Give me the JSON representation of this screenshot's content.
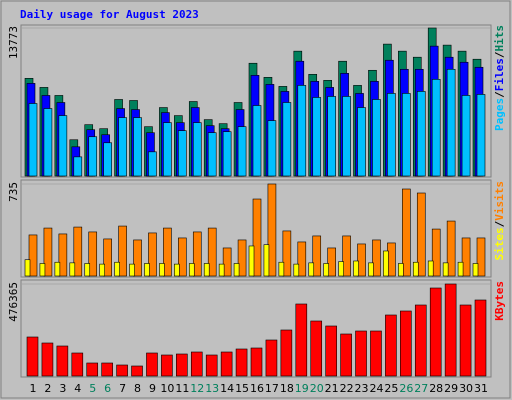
{
  "chart_data": [
    {
      "type": "bar",
      "title": "Daily usage for August 2023",
      "ylim": [
        0,
        13773
      ],
      "yticks": [
        13773
      ],
      "legend_separator": "/",
      "series": [
        {
          "name": "Hits",
          "color": "#00805c",
          "values": [
            9090,
            8245,
            7495,
            3373,
            4778,
            4404,
            7121,
            7027,
            4591,
            6371,
            5622,
            6933,
            5247,
            4872,
            6840,
            10494,
            9182,
            8339,
            11618,
            9463,
            8901,
            10681,
            8432,
            9838,
            12274,
            11618,
            11056,
            13773,
            12180,
            11618,
            10868
          ]
        },
        {
          "name": "Files",
          "color": "#0000ff",
          "values": [
            8620,
            7495,
            6840,
            2717,
            4310,
            3841,
            6277,
            6184,
            4029,
            5902,
            4966,
            6371,
            4685,
            4403,
            6184,
            9369,
            8526,
            7870,
            10681,
            8807,
            8245,
            9556,
            7683,
            8807,
            10774,
            9931,
            9931,
            12086,
            11055,
            10587,
            10119
          ]
        },
        {
          "name": "Pages",
          "color": "#00c0ff",
          "values": [
            6746,
            6277,
            5621,
            1780,
            3654,
            3092,
            5434,
            5434,
            2249,
            4966,
            4216,
            4966,
            4029,
            4122,
            4591,
            6558,
            5153,
            6839,
            8432,
            7308,
            7402,
            7402,
            6371,
            7120,
            7683,
            7683,
            7870,
            8994,
            9931,
            7495,
            7589
          ]
        }
      ]
    },
    {
      "type": "bar",
      "ylim": [
        0,
        735
      ],
      "yticks": [
        735
      ],
      "legend_separator": "/",
      "series": [
        {
          "name": "Visits",
          "color": "#ff8000",
          "values": [
            328,
            383,
            336,
            391,
            352,
            296,
            399,
            288,
            344,
            383,
            304,
            352,
            383,
            224,
            288,
            615,
            735,
            360,
            272,
            320,
            224,
            320,
            256,
            288,
            264,
            695,
            663,
            375,
            439,
            304,
            304
          ]
        },
        {
          "name": "Sites",
          "color": "#ffff00",
          "values": [
            130,
            100,
            110,
            105,
            100,
            95,
            110,
            95,
            100,
            100,
            95,
            100,
            100,
            95,
            100,
            240,
            250,
            110,
            95,
            105,
            100,
            115,
            120,
            105,
            200,
            100,
            110,
            120,
            105,
            110,
            100
          ]
        }
      ]
    },
    {
      "type": "bar",
      "ylim": [
        0,
        476365
      ],
      "yticks": [
        476365
      ],
      "categories": [
        "1",
        "2",
        "3",
        "4",
        "5",
        "6",
        "7",
        "8",
        "9",
        "10",
        "11",
        "12",
        "13",
        "14",
        "15",
        "16",
        "17",
        "18",
        "19",
        "20",
        "21",
        "22",
        "23",
        "24",
        "25",
        "26",
        "27",
        "28",
        "29",
        "30",
        "31"
      ],
      "category_colors": [
        "#000000",
        "#000000",
        "#000000",
        "#000000",
        "#00805c",
        "#00805c",
        "#000000",
        "#000000",
        "#000000",
        "#000000",
        "#000000",
        "#00805c",
        "#00805c",
        "#000000",
        "#000000",
        "#000000",
        "#000000",
        "#000000",
        "#00805c",
        "#00805c",
        "#000000",
        "#000000",
        "#000000",
        "#000000",
        "#000000",
        "#00805c",
        "#00805c",
        "#000000",
        "#000000",
        "#000000",
        "#000000"
      ],
      "series": [
        {
          "name": "KBytes",
          "color": "#ff0000",
          "values": [
            201942,
            170874,
            155340,
            119094,
            67314,
            67314,
            56958,
            51780,
            119094,
            108738,
            113916,
            124272,
            108738,
            124272,
            139806,
            144984,
            186408,
            238188,
            372816,
            284790,
            258900,
            217476,
            233010,
            233010,
            315858,
            336570,
            367638,
            455664,
            476365,
            367638,
            393528
          ]
        }
      ]
    }
  ]
}
